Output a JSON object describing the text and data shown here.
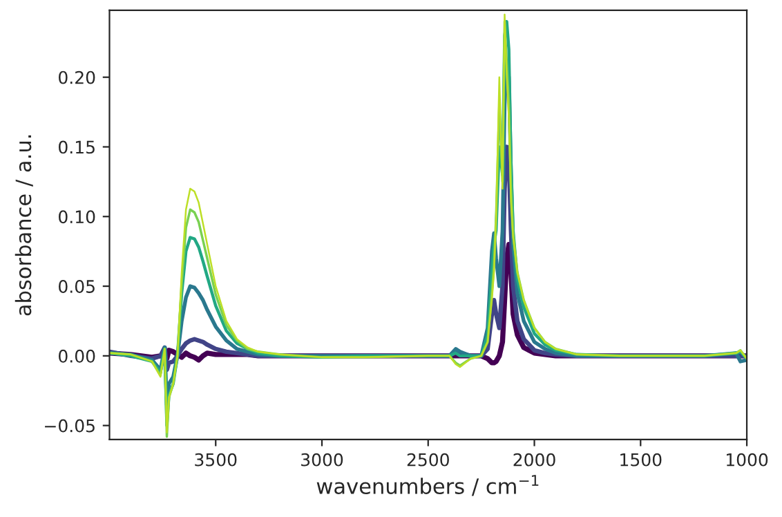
{
  "chart_data": {
    "type": "line",
    "xlabel": "wavenumbers / cm$^{−1}$",
    "ylabel": "absorbance / a.u.",
    "x": [
      4000,
      3900,
      3800,
      3760,
      3740,
      3730,
      3720,
      3700,
      3680,
      3660,
      3640,
      3620,
      3600,
      3580,
      3560,
      3540,
      3500,
      3450,
      3400,
      3350,
      3300,
      3200,
      3000,
      2800,
      2500,
      2400,
      2370,
      2350,
      2300,
      2250,
      2220,
      2200,
      2190,
      2180,
      2165,
      2150,
      2140,
      2130,
      2120,
      2110,
      2100,
      2080,
      2050,
      2000,
      1950,
      1900,
      1800,
      1600,
      1400,
      1200,
      1050,
      1030,
      1000
    ],
    "xlim": [
      4000,
      1000
    ],
    "xticks": [
      3500,
      3000,
      2500,
      2000,
      1500,
      1000
    ],
    "ylim": [
      -0.06,
      0.248
    ],
    "yticks": [
      {
        "value": -0.05,
        "label": "−0.05"
      },
      {
        "value": 0.0,
        "label": "0.00"
      },
      {
        "value": 0.05,
        "label": "0.05"
      },
      {
        "value": 0.1,
        "label": "0.10"
      },
      {
        "value": 0.15,
        "label": "0.15"
      },
      {
        "value": 0.2,
        "label": "0.20"
      }
    ],
    "grid": false,
    "marker": "none",
    "line_style": "solid",
    "series": [
      {
        "color": "#440154",
        "values": [
          0.002,
          0.001,
          -0.001,
          0.0,
          0.002,
          -0.002,
          0.004,
          0.003,
          0.001,
          -0.001,
          0.002,
          0.0,
          -0.001,
          -0.003,
          0.0,
          0.002,
          0.001,
          0.001,
          0.001,
          0.001,
          0.0,
          0.0,
          0.0,
          0.0,
          0.0,
          0.0,
          0.0,
          0.0,
          0.0,
          0.0,
          -0.002,
          -0.005,
          -0.005,
          -0.004,
          0.0,
          0.01,
          0.04,
          0.07,
          0.08,
          0.06,
          0.03,
          0.015,
          0.006,
          0.002,
          0.001,
          0.0,
          0.0,
          0.0,
          0.0,
          0.0,
          0.0,
          0.0,
          0.0
        ]
      },
      {
        "color": "#414487",
        "values": [
          0.003,
          0.0,
          -0.002,
          0.0,
          0.006,
          -0.01,
          -0.005,
          -0.004,
          0.0,
          0.005,
          0.009,
          0.011,
          0.012,
          0.011,
          0.01,
          0.008,
          0.005,
          0.003,
          0.002,
          0.001,
          0.0,
          0.0,
          0.0,
          0.0,
          0.0,
          0.0,
          0.003,
          0.002,
          0.0,
          0.0,
          0.005,
          0.03,
          0.04,
          0.03,
          0.02,
          0.05,
          0.12,
          0.15,
          0.14,
          0.09,
          0.05,
          0.025,
          0.012,
          0.004,
          0.002,
          0.001,
          0.0,
          0.0,
          0.0,
          0.0,
          0.0,
          0.0,
          0.0
        ]
      },
      {
        "color": "#2a788e",
        "values": [
          0.002,
          0.001,
          -0.003,
          -0.01,
          0.006,
          -0.035,
          -0.02,
          -0.015,
          0.0,
          0.025,
          0.042,
          0.05,
          0.049,
          0.045,
          0.04,
          0.033,
          0.021,
          0.011,
          0.005,
          0.003,
          0.001,
          0.0,
          0.0,
          0.0,
          0.0,
          0.0,
          0.005,
          0.003,
          0.0,
          0.0,
          0.02,
          0.075,
          0.088,
          0.07,
          0.05,
          0.09,
          0.18,
          0.21,
          0.2,
          0.13,
          0.08,
          0.045,
          0.025,
          0.01,
          0.005,
          0.002,
          0.0,
          0.0,
          0.0,
          0.0,
          0.002,
          -0.004,
          -0.003
        ]
      },
      {
        "color": "#22a884",
        "values": [
          0.002,
          0.0,
          -0.004,
          -0.012,
          0.005,
          -0.05,
          -0.028,
          -0.02,
          0.0,
          0.045,
          0.075,
          0.085,
          0.084,
          0.078,
          0.068,
          0.057,
          0.036,
          0.018,
          0.009,
          0.005,
          0.002,
          0.0,
          -0.001,
          0.0,
          0.0,
          0.0,
          0.002,
          0.0,
          0.0,
          0.0,
          0.015,
          0.06,
          0.08,
          0.09,
          0.15,
          0.13,
          0.23,
          0.24,
          0.22,
          0.14,
          0.09,
          0.055,
          0.035,
          0.016,
          0.008,
          0.004,
          0.001,
          0.0,
          0.0,
          0.0,
          0.002,
          0.003,
          -0.002
        ]
      },
      {
        "color": "#7ad151",
        "values": [
          0.002,
          0.001,
          -0.004,
          -0.014,
          0.005,
          -0.058,
          -0.03,
          -0.02,
          0.0,
          0.052,
          0.092,
          0.105,
          0.103,
          0.096,
          0.083,
          0.07,
          0.044,
          0.022,
          0.011,
          0.005,
          0.003,
          0.001,
          -0.001,
          -0.001,
          0.0,
          0.0,
          -0.005,
          -0.007,
          -0.002,
          0.0,
          0.01,
          0.045,
          0.065,
          0.1,
          0.18,
          0.125,
          0.24,
          0.21,
          0.18,
          0.12,
          0.088,
          0.06,
          0.04,
          0.02,
          0.01,
          0.005,
          0.001,
          0.0,
          0.0,
          0.0,
          0.002,
          0.004,
          -0.002
        ]
      },
      {
        "color": "#bddf26",
        "values": [
          0.002,
          0.001,
          -0.004,
          -0.015,
          0.005,
          -0.055,
          -0.03,
          -0.02,
          0.0,
          0.06,
          0.105,
          0.12,
          0.118,
          0.11,
          0.095,
          0.08,
          0.05,
          0.025,
          0.012,
          0.006,
          0.003,
          0.001,
          -0.001,
          -0.001,
          0.0,
          0.0,
          -0.006,
          -0.008,
          -0.002,
          0.0,
          0.01,
          0.04,
          0.06,
          0.1,
          0.2,
          0.12,
          0.245,
          0.2,
          0.17,
          0.11,
          0.085,
          0.06,
          0.04,
          0.02,
          0.01,
          0.005,
          0.001,
          0.0,
          0.0,
          0.0,
          0.002,
          0.004,
          -0.002
        ]
      }
    ]
  }
}
